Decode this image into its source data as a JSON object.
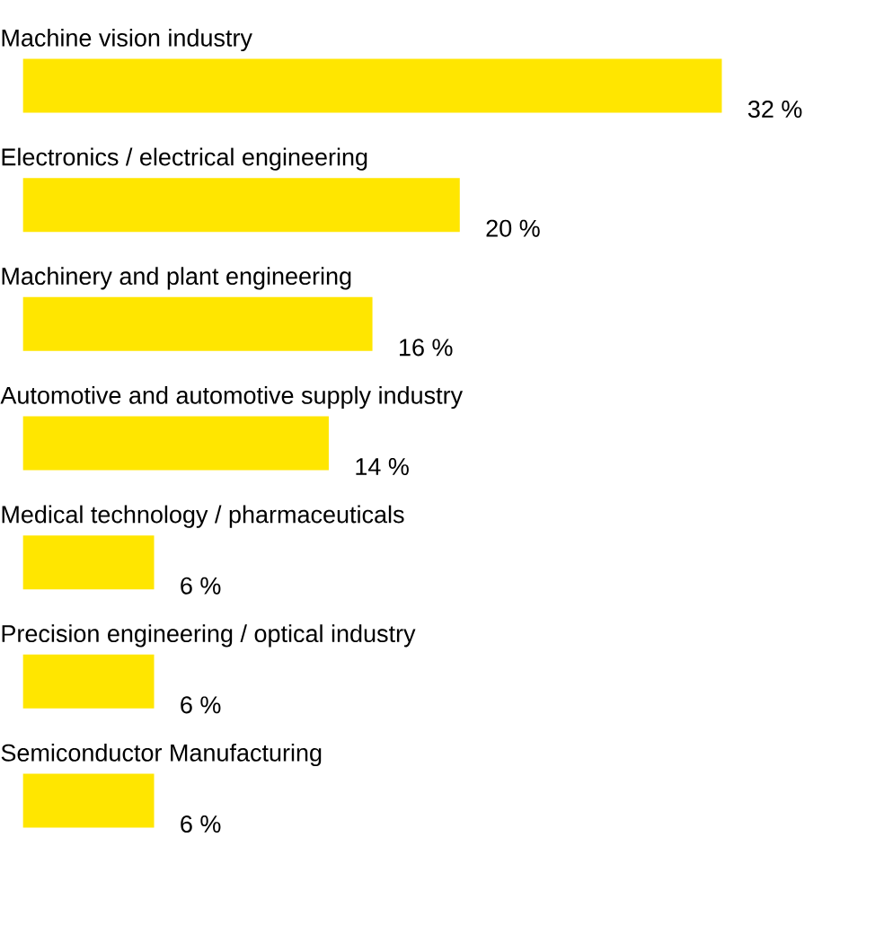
{
  "chart_data": {
    "type": "bar",
    "orientation": "horizontal",
    "color": "#ffe600",
    "categories": [
      "Machine vision industry",
      "Electronics / electrical engineering",
      "Machinery and plant engineering",
      "Automotive and automotive supply industry",
      "Medical technology / pharmaceuticals",
      "Precision engineering / optical industry",
      "Semiconductor Manufacturing"
    ],
    "values": [
      32,
      20,
      16,
      14,
      6,
      6,
      6
    ],
    "value_labels": [
      "32 %",
      "20 %",
      "16 %",
      "14 %",
      "6 %",
      "6 %",
      "6 %"
    ]
  }
}
